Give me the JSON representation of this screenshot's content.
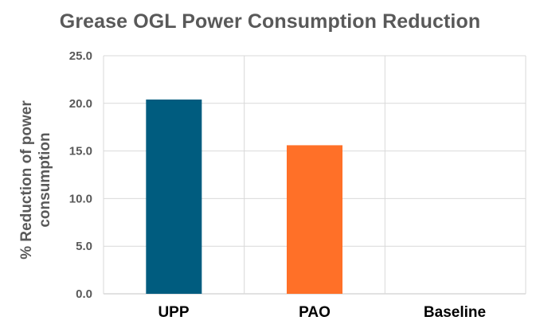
{
  "chart_data": {
    "type": "bar",
    "title": "Grease OGL Power Consumption Reduction",
    "xlabel": "",
    "ylabel": "% Reduction of power consumption",
    "ylabel_lines": [
      "% Reduction of power",
      "consumption"
    ],
    "categories": [
      "UPP",
      "PAO",
      "Baseline"
    ],
    "values": [
      20.4,
      15.6,
      0.0
    ],
    "bar_colors": [
      "#005C7F",
      "#FF7028",
      "#FFFFFF"
    ],
    "ylim": [
      0,
      25
    ],
    "yticks": [
      "0.0",
      "5.0",
      "10.0",
      "15.0",
      "20.0",
      "25.0"
    ],
    "grid": true,
    "legend": "none"
  },
  "colors": {
    "title": "#595959",
    "axis_text": "#595959",
    "grid": "#D9D9D9"
  }
}
